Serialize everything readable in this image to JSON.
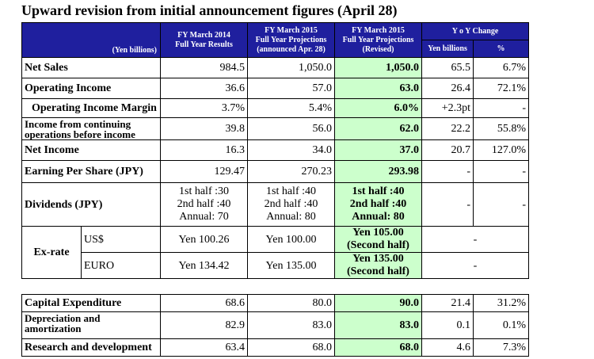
{
  "title": "Upward revision from initial announcement figures (April 28)",
  "header": {
    "unit": "(Yen billions)",
    "col1": [
      "FY March 2014",
      "Full Year Results"
    ],
    "col2": [
      "FY March 2015",
      "Full Year Projections",
      "(announced Apr. 28)"
    ],
    "col3": [
      "FY March 2015",
      "Full Year Projections",
      "(Revised)"
    ],
    "yoy": "Y o Y Change",
    "yoy_sub1": "Yen billions",
    "yoy_sub2": "%"
  },
  "rows": [
    {
      "label": "Net Sales",
      "v1": "984.5",
      "v2": "1,050.0",
      "v3": "1,050.0",
      "yoy": "65.5",
      "pct": "6.7%"
    },
    {
      "label": "Operating Income",
      "v1": "36.6",
      "v2": "57.0",
      "v3": "63.0",
      "yoy": "26.4",
      "pct": "72.1%"
    },
    {
      "label": "Operating Income Margin",
      "v1": "3.7%",
      "v2": "5.4%",
      "v3": "6.0%",
      "yoy": "+2.3pt",
      "pct": "-"
    },
    {
      "label": "Income from continuing operations before income",
      "v1": "39.8",
      "v2": "56.0",
      "v3": "62.0",
      "yoy": "22.2",
      "pct": "55.8%"
    },
    {
      "label": "Net Income",
      "v1": "16.3",
      "v2": "34.0",
      "v3": "37.0",
      "yoy": "20.7",
      "pct": "127.0%"
    },
    {
      "label": "Earning Per Share (JPY)",
      "v1": "129.47",
      "v2": "270.23",
      "v3": "293.98",
      "yoy": "-",
      "pct": "-"
    }
  ],
  "dividends": {
    "label": "Dividends (JPY)",
    "v1": [
      "1st half :30",
      "2nd half :40",
      "Annual: 70"
    ],
    "v2": [
      "1st half :40",
      "2nd half :40",
      "Annual: 80"
    ],
    "v3": [
      "1st half :40",
      "2nd half :40",
      "Annual: 80"
    ],
    "yoy": "-",
    "pct": "-"
  },
  "exrate": {
    "label": "Ex-rate",
    "usd": {
      "label": "US$",
      "v1": "Yen 100.26",
      "v2": "Yen 100.00",
      "v3": [
        "Yen 105.00",
        "(Second half)"
      ],
      "yoy": "-"
    },
    "euro": {
      "label": "EURO",
      "v1": "Yen 134.42",
      "v2": "Yen 135.00",
      "v3": [
        "Yen 135.00",
        "(Second half)"
      ],
      "yoy": "-"
    }
  },
  "capex_rows": [
    {
      "label": "Capital Expenditure",
      "v1": "68.6",
      "v2": "80.0",
      "v3": "90.0",
      "yoy": "21.4",
      "pct": "31.2%"
    },
    {
      "label": "Depreciation and amortization",
      "v1": "82.9",
      "v2": "83.0",
      "v3": "83.0",
      "yoy": "0.1",
      "pct": "0.1%"
    },
    {
      "label": "Research and development",
      "v1": "63.4",
      "v2": "68.0",
      "v3": "68.0",
      "yoy": "4.6",
      "pct": "7.3%"
    }
  ]
}
